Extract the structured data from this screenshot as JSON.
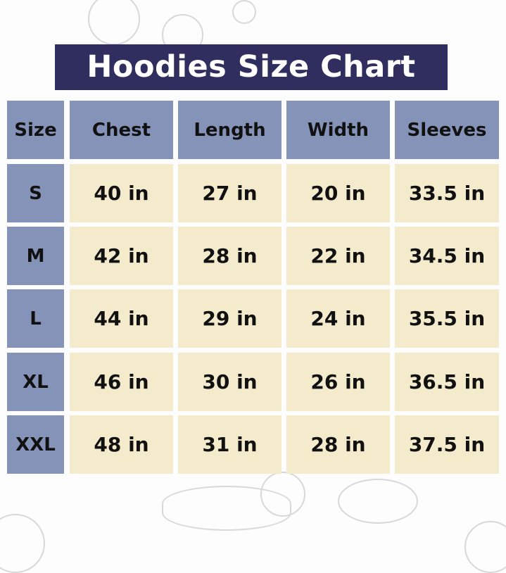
{
  "title": "Hoodies Size Chart",
  "colors": {
    "title_bg": "#2f2e5f",
    "header_bg": "#8593b8",
    "cell_bg": "#f4ebcd"
  },
  "columns": [
    "Size",
    "Chest",
    "Length",
    "Width",
    "Sleeves"
  ],
  "rows": [
    [
      "S",
      "40 in",
      "27 in",
      "20 in",
      "33.5 in"
    ],
    [
      "M",
      "42 in",
      "28 in",
      "22 in",
      "34.5 in"
    ],
    [
      "L",
      "44 in",
      "29 in",
      "24 in",
      "35.5 in"
    ],
    [
      "XL",
      "46 in",
      "30 in",
      "26 in",
      "36.5 in"
    ],
    [
      "XXL",
      "48 in",
      "31 in",
      "28 in",
      "37.5 in"
    ]
  ]
}
